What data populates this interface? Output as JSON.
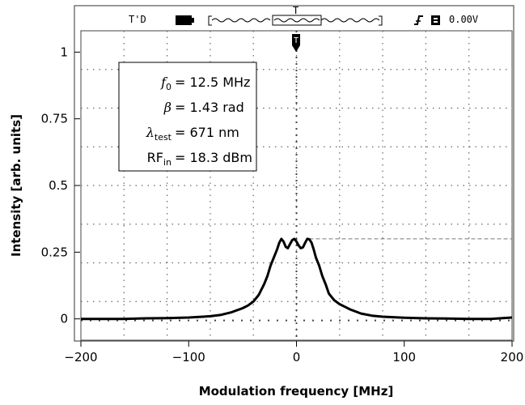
{
  "chart_data": {
    "type": "line",
    "xlabel": "Modulation frequency [MHz]",
    "ylabel": "Intensity [arb. units]",
    "xlim": [
      -200,
      200
    ],
    "ylim": [
      -0.08,
      1.08
    ],
    "xticks": [
      -200,
      -100,
      0,
      100,
      200
    ],
    "xtick_labels": [
      "−200",
      "−100",
      "0",
      "100",
      "200"
    ],
    "yticks": [
      0,
      0.25,
      0.5,
      0.75,
      1
    ],
    "ytick_labels": [
      "0",
      "0.25",
      "0.5",
      "0.75",
      "1"
    ],
    "grid": "dotted (oscilloscope graticule)",
    "series": [
      {
        "x": [
          -200,
          -180,
          -160,
          -140,
          -120,
          -100,
          -80,
          -70,
          -60,
          -50,
          -45,
          -40,
          -35,
          -30,
          -27,
          -24,
          -21,
          -18,
          -16,
          -14,
          -12,
          -10,
          -8,
          -6,
          -4,
          -2,
          0,
          2,
          4,
          6,
          8,
          10,
          12,
          14,
          16,
          18,
          21,
          24,
          27,
          30,
          35,
          40,
          45,
          50,
          60,
          70,
          80,
          100,
          120,
          140,
          160,
          180,
          200
        ],
        "y": [
          0.0,
          0.0,
          0.0,
          0.002,
          0.003,
          0.005,
          0.01,
          0.015,
          0.025,
          0.04,
          0.05,
          0.065,
          0.09,
          0.13,
          0.16,
          0.2,
          0.23,
          0.26,
          0.285,
          0.3,
          0.29,
          0.27,
          0.265,
          0.28,
          0.295,
          0.3,
          0.29,
          0.275,
          0.265,
          0.268,
          0.285,
          0.3,
          0.298,
          0.285,
          0.26,
          0.23,
          0.2,
          0.16,
          0.13,
          0.095,
          0.07,
          0.055,
          0.045,
          0.035,
          0.02,
          0.012,
          0.008,
          0.004,
          0.002,
          0.001,
          0.0,
          0.0,
          0.005
        ]
      }
    ],
    "annotations": {
      "peak_marker_y": 0.3,
      "params": [
        {
          "sym": "f",
          "sub": "0",
          "value": "= 12.5 MHz"
        },
        {
          "sym": "β",
          "sub": "",
          "value": "= 1.43 rad"
        },
        {
          "sym": "λ",
          "sub": "test",
          "value": "= 671  nm"
        },
        {
          "sym": "RF",
          "sub": "in",
          "value": "= 18.3 dBm"
        }
      ]
    }
  },
  "scope_header": {
    "left": "T'D",
    "trigger_marker": "T",
    "right_value": "0.00V"
  },
  "icons": [
    "battery-icon",
    "trigger-edge-icon",
    "channel-box-icon",
    "trigger-position-icon"
  ]
}
